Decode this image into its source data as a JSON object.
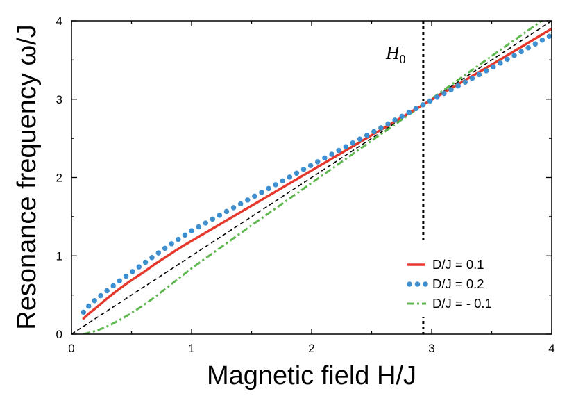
{
  "chart_data": {
    "type": "line",
    "xlabel": "Magnetic field H/J",
    "ylabel": "Resonance frequency ω/J",
    "xlim": [
      0,
      4
    ],
    "ylim": [
      0,
      4
    ],
    "xticks": [
      0,
      1,
      2,
      3,
      4
    ],
    "yticks": [
      0,
      1,
      2,
      3,
      4
    ],
    "minor_tick_step": 0.5,
    "grid": false,
    "legend_position": "lower-right",
    "x": [
      0.1,
      0.15,
      0.2,
      0.3,
      0.4,
      0.5,
      0.6,
      0.7,
      0.8,
      0.9,
      1.0,
      1.2,
      1.5,
      2.0,
      2.5,
      2.93,
      3.5,
      4.0
    ],
    "series": [
      {
        "name": "D/J = 0.1",
        "color": "#e5392d",
        "values": [
          0.2,
          0.27,
          0.33,
          0.46,
          0.58,
          0.69,
          0.79,
          0.9,
          1.0,
          1.1,
          1.19,
          1.37,
          1.64,
          2.09,
          2.54,
          2.93,
          3.44,
          3.9
        ]
      },
      {
        "name": "D/J = 0.2",
        "color": "#3e8fd0",
        "values": [
          0.28,
          0.37,
          0.44,
          0.56,
          0.68,
          0.79,
          0.9,
          1.01,
          1.12,
          1.22,
          1.32,
          1.49,
          1.74,
          2.16,
          2.57,
          2.93,
          3.4,
          3.82
        ]
      },
      {
        "name": "D/J = - 0.1",
        "color": "#5fb74f",
        "values": [
          0.0,
          0.02,
          0.04,
          0.1,
          0.18,
          0.27,
          0.37,
          0.48,
          0.6,
          0.72,
          0.84,
          1.06,
          1.39,
          1.93,
          2.47,
          2.93,
          3.55,
          4.09
        ]
      }
    ],
    "reference_line": {
      "x": [
        0,
        4
      ],
      "y": [
        0,
        4
      ],
      "color": "#000000"
    },
    "annotations": [
      {
        "type": "vline",
        "x": 2.93,
        "label": "H",
        "label_subscript": "0",
        "color": "#000000"
      }
    ]
  }
}
